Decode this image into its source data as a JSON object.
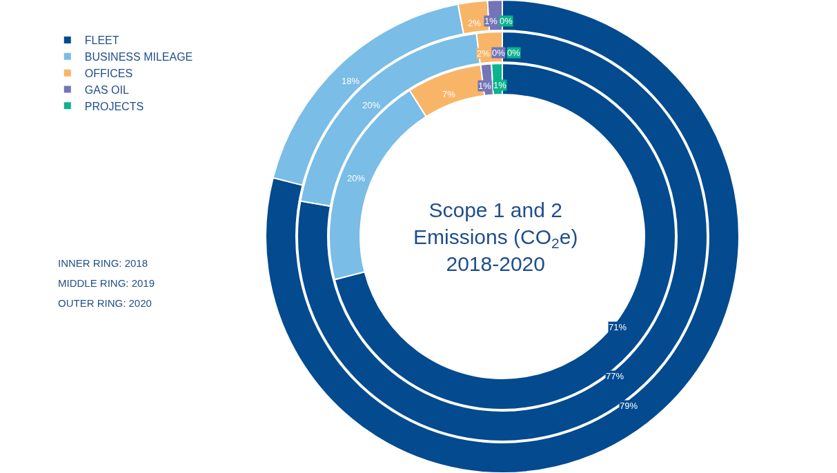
{
  "chart_data": {
    "type": "donut",
    "title": "Scope 1 and 2\nEmissions (CO$_{2}$e)\n2018-2020",
    "categories": [
      "FLEET",
      "BUSINESS MILEAGE",
      "OFFICES",
      "GAS OIL",
      "PROJECTS"
    ],
    "colors": [
      "#034a8f",
      "#7abde6",
      "#f9b567",
      "#7474b8",
      "#0bb38e"
    ],
    "series": [
      {
        "values": [
          71,
          20,
          7,
          1,
          1
        ],
        "value_labels": [
          "71%",
          "20%",
          "7%",
          "1%",
          "1%"
        ]
      },
      {
        "values": [
          77,
          20,
          2,
          0,
          0
        ],
        "value_labels": [
          "77%",
          "20%",
          "2%",
          "0%",
          "0%"
        ]
      },
      {
        "values": [
          79,
          18,
          2,
          1,
          0
        ],
        "value_labels": [
          "79%",
          "18%",
          "2%",
          "1%",
          "0%"
        ]
      }
    ],
    "annotations": [
      "INNER RING: 2018",
      "MIDDLE RING: 2019",
      "OUTER RING: 2020"
    ],
    "legend": "left"
  }
}
